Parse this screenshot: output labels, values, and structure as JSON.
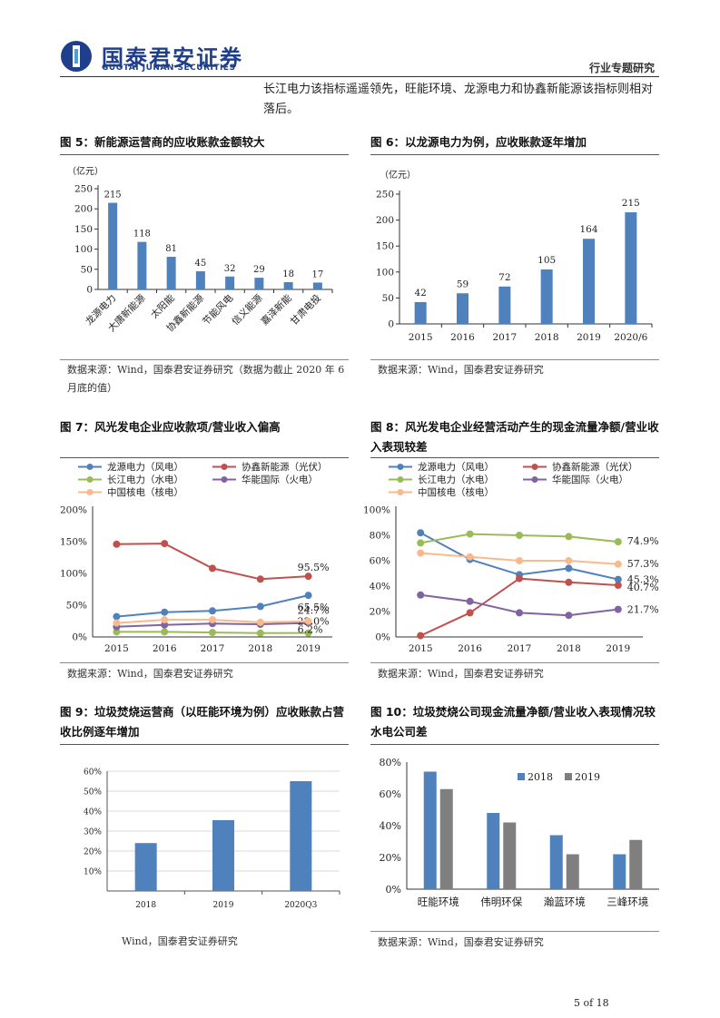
{
  "header": {
    "brand_cn": "国泰君安证券",
    "brand_en": "GUOTAI JUNAN SECURITIES",
    "report_type": "行业专题研究",
    "brand_color": "#1f3f8c"
  },
  "intro_text": "长江电力该指标遥遥领先，旺能环境、龙源电力和协鑫新能源该指标则相对落后。",
  "page_number": "5 of 18",
  "colors": {
    "bar": "#4f81bd",
    "gray_bar": "#7f7f7f",
    "blue_line": "#4f81bd",
    "red_line": "#c0504d",
    "green_line": "#9bbb59",
    "purple_line": "#8064a2",
    "orange_line": "#f9b98d"
  },
  "figures": [
    {
      "title": "图 5：新能源运营商的应收账款金额较大",
      "source": "数据来源：Wind，国泰君安证券研究（数据为截止 2020 年 6 月底的值）",
      "chart_data": {
        "type": "bar",
        "unit_label": "（亿元）",
        "categories": [
          "龙源电力",
          "大唐新能源",
          "太阳能",
          "协鑫新能源",
          "节能风电",
          "信义能源",
          "嘉泽新能",
          "甘肃电投"
        ],
        "values": [
          215,
          118,
          81,
          45,
          32,
          29,
          18,
          17
        ],
        "data_labels": [
          "215",
          "118",
          "81",
          "45",
          "32",
          "29",
          "18",
          "17"
        ],
        "yticks": [
          "0",
          "50",
          "100",
          "150",
          "200",
          "250"
        ],
        "ylim": [
          0,
          250
        ]
      }
    },
    {
      "title": "图 6：以龙源电力为例，应收账款逐年增加",
      "source": "数据来源：Wind，国泰君安证券研究",
      "chart_data": {
        "type": "bar",
        "unit_label": "（亿元）",
        "categories": [
          "2015",
          "2016",
          "2017",
          "2018",
          "2019",
          "2020/6"
        ],
        "values": [
          42,
          59,
          72,
          105,
          164,
          215
        ],
        "data_labels": [
          "42",
          "59",
          "72",
          "105",
          "164",
          "215"
        ],
        "yticks": [
          "0",
          "50",
          "100",
          "150",
          "200",
          "250"
        ],
        "ylim": [
          0,
          250
        ]
      }
    },
    {
      "title": "图 7：风光发电企业应收款项/营业收入偏高",
      "source": "数据来源：Wind，国泰君安证券研究",
      "chart_data": {
        "type": "line",
        "categories": [
          "2015",
          "2016",
          "2017",
          "2018",
          "2019"
        ],
        "yticks": [
          "0%",
          "50%",
          "100%",
          "150%",
          "200%"
        ],
        "ylim": [
          0,
          200
        ],
        "legend": "top",
        "series": [
          {
            "name": "龙源电力（风电）",
            "values": [
              32,
              39,
              41,
              48,
              65.5
            ],
            "color": "#4f81bd",
            "end_label": "65.5%"
          },
          {
            "name": "协鑫新能源（光伏）",
            "values": [
              146,
              147,
              108,
              91,
              95.5
            ],
            "color": "#c0504d",
            "end_label": "95.5%"
          },
          {
            "name": "长江电力（水电）",
            "values": [
              8,
              8,
              7,
              6,
              6.2
            ],
            "color": "#9bbb59",
            "end_label": "6.2%"
          },
          {
            "name": "华能国际（火电）",
            "values": [
              16,
              19,
              21,
              20,
              22.0
            ],
            "color": "#8064a2",
            "end_label": "22.0%"
          },
          {
            "name": "中国核电（核电）",
            "values": [
              22,
              27,
              27,
              23,
              24.7
            ],
            "color": "#f9b98d",
            "end_label": "24.7%"
          }
        ]
      }
    },
    {
      "title": "图 8：风光发电企业经营活动产生的现金流量净额/营业收入表现较差",
      "source": "数据来源：Wind，国泰君安证券研究",
      "chart_data": {
        "type": "line",
        "categories": [
          "2015",
          "2016",
          "2017",
          "2018",
          "2019"
        ],
        "yticks": [
          "0%",
          "20%",
          "40%",
          "60%",
          "80%",
          "100%"
        ],
        "ylim": [
          0,
          100
        ],
        "legend": "top",
        "series": [
          {
            "name": "龙源电力（风电）",
            "values": [
              82,
              61,
              49,
              54,
              45.3
            ],
            "color": "#4f81bd",
            "end_label": "45.3%"
          },
          {
            "name": "协鑫新能源（光伏）",
            "values": [
              1,
              19,
              46,
              43,
              40.7
            ],
            "color": "#c0504d",
            "end_label": "40.7%"
          },
          {
            "name": "长江电力（水电）",
            "values": [
              74,
              81,
              80,
              79,
              74.9
            ],
            "color": "#9bbb59",
            "end_label": "74.9%"
          },
          {
            "name": "华能国际（火电）",
            "values": [
              33,
              28,
              19,
              17,
              21.7
            ],
            "color": "#8064a2",
            "end_label": "21.7%"
          },
          {
            "name": "中国核电（核电）",
            "values": [
              66,
              63,
              60,
              60,
              57.3
            ],
            "color": "#f9b98d",
            "end_label": "57.3%"
          }
        ]
      }
    },
    {
      "title": "图 9：垃圾焚烧运营商（以旺能环境为例）应收账款占营收比例逐年增加",
      "source": "Wind，国泰君安证券研究",
      "chart_data": {
        "type": "bar",
        "categories": [
          "2018",
          "2019",
          "2020Q3"
        ],
        "values": [
          24,
          35.5,
          55
        ],
        "yticks": [
          "10%",
          "20%",
          "30%",
          "40%",
          "50%",
          "60%"
        ],
        "ylim": [
          0,
          60
        ]
      }
    },
    {
      "title": "图 10：垃圾焚烧公司现金流量净额/营业收入表现情况较水电公司差",
      "source": "数据来源：Wind，国泰君安证券研究",
      "chart_data": {
        "type": "bar",
        "categories": [
          "旺能环境",
          "伟明环保",
          "瀚蓝环境",
          "三峰环境"
        ],
        "yticks": [
          "0%",
          "20%",
          "40%",
          "60%",
          "80%"
        ],
        "ylim": [
          0,
          80
        ],
        "legend": "top-right",
        "series": [
          {
            "name": "2018",
            "values": [
              74,
              48,
              34,
              22
            ],
            "color": "#4f81bd"
          },
          {
            "name": "2019",
            "values": [
              63,
              42,
              22,
              31
            ],
            "color": "#7f7f7f"
          }
        ]
      }
    }
  ]
}
